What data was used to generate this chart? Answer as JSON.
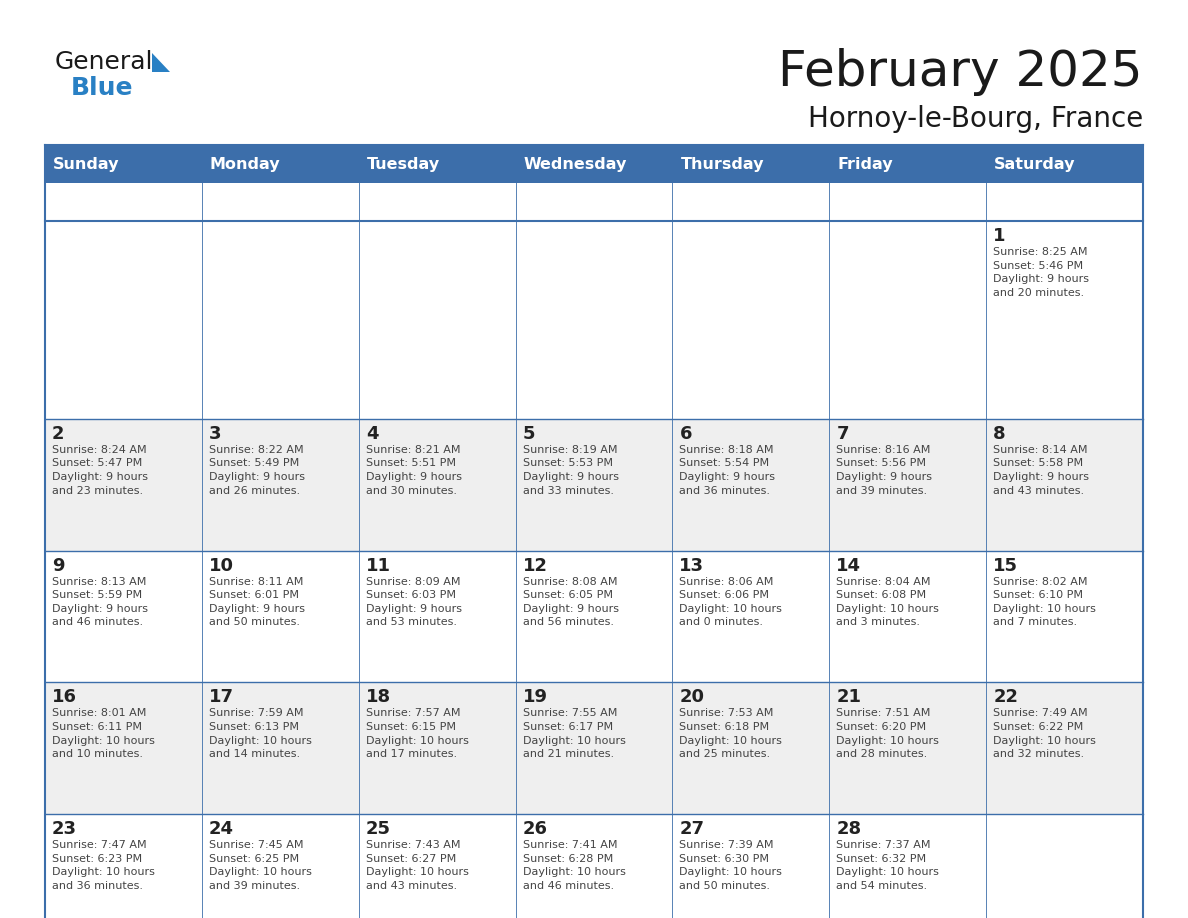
{
  "title": "February 2025",
  "subtitle": "Hornoy-le-Bourg, France",
  "days_of_week": [
    "Sunday",
    "Monday",
    "Tuesday",
    "Wednesday",
    "Thursday",
    "Friday",
    "Saturday"
  ],
  "header_bg": "#3C6EAA",
  "header_text": "#FFFFFF",
  "header_font_size": 12,
  "day_number_color": "#333333",
  "cell_bg_white": "#FFFFFF",
  "cell_bg_gray": "#EFEFEF",
  "cell_text_color": "#444444",
  "border_color": "#3C6EAA",
  "title_color": "#1a1a1a",
  "logo_general_color": "#1a1a1a",
  "logo_blue_color": "#2980C4",
  "calendar_data": [
    [
      null,
      null,
      null,
      null,
      null,
      null,
      {
        "day": 1,
        "sunrise": "8:25 AM",
        "sunset": "5:46 PM",
        "daylight": "9 hours\nand 20 minutes."
      }
    ],
    [
      {
        "day": 2,
        "sunrise": "8:24 AM",
        "sunset": "5:47 PM",
        "daylight": "9 hours\nand 23 minutes."
      },
      {
        "day": 3,
        "sunrise": "8:22 AM",
        "sunset": "5:49 PM",
        "daylight": "9 hours\nand 26 minutes."
      },
      {
        "day": 4,
        "sunrise": "8:21 AM",
        "sunset": "5:51 PM",
        "daylight": "9 hours\nand 30 minutes."
      },
      {
        "day": 5,
        "sunrise": "8:19 AM",
        "sunset": "5:53 PM",
        "daylight": "9 hours\nand 33 minutes."
      },
      {
        "day": 6,
        "sunrise": "8:18 AM",
        "sunset": "5:54 PM",
        "daylight": "9 hours\nand 36 minutes."
      },
      {
        "day": 7,
        "sunrise": "8:16 AM",
        "sunset": "5:56 PM",
        "daylight": "9 hours\nand 39 minutes."
      },
      {
        "day": 8,
        "sunrise": "8:14 AM",
        "sunset": "5:58 PM",
        "daylight": "9 hours\nand 43 minutes."
      }
    ],
    [
      {
        "day": 9,
        "sunrise": "8:13 AM",
        "sunset": "5:59 PM",
        "daylight": "9 hours\nand 46 minutes."
      },
      {
        "day": 10,
        "sunrise": "8:11 AM",
        "sunset": "6:01 PM",
        "daylight": "9 hours\nand 50 minutes."
      },
      {
        "day": 11,
        "sunrise": "8:09 AM",
        "sunset": "6:03 PM",
        "daylight": "9 hours\nand 53 minutes."
      },
      {
        "day": 12,
        "sunrise": "8:08 AM",
        "sunset": "6:05 PM",
        "daylight": "9 hours\nand 56 minutes."
      },
      {
        "day": 13,
        "sunrise": "8:06 AM",
        "sunset": "6:06 PM",
        "daylight": "10 hours\nand 0 minutes."
      },
      {
        "day": 14,
        "sunrise": "8:04 AM",
        "sunset": "6:08 PM",
        "daylight": "10 hours\nand 3 minutes."
      },
      {
        "day": 15,
        "sunrise": "8:02 AM",
        "sunset": "6:10 PM",
        "daylight": "10 hours\nand 7 minutes."
      }
    ],
    [
      {
        "day": 16,
        "sunrise": "8:01 AM",
        "sunset": "6:11 PM",
        "daylight": "10 hours\nand 10 minutes."
      },
      {
        "day": 17,
        "sunrise": "7:59 AM",
        "sunset": "6:13 PM",
        "daylight": "10 hours\nand 14 minutes."
      },
      {
        "day": 18,
        "sunrise": "7:57 AM",
        "sunset": "6:15 PM",
        "daylight": "10 hours\nand 17 minutes."
      },
      {
        "day": 19,
        "sunrise": "7:55 AM",
        "sunset": "6:17 PM",
        "daylight": "10 hours\nand 21 minutes."
      },
      {
        "day": 20,
        "sunrise": "7:53 AM",
        "sunset": "6:18 PM",
        "daylight": "10 hours\nand 25 minutes."
      },
      {
        "day": 21,
        "sunrise": "7:51 AM",
        "sunset": "6:20 PM",
        "daylight": "10 hours\nand 28 minutes."
      },
      {
        "day": 22,
        "sunrise": "7:49 AM",
        "sunset": "6:22 PM",
        "daylight": "10 hours\nand 32 minutes."
      }
    ],
    [
      {
        "day": 23,
        "sunrise": "7:47 AM",
        "sunset": "6:23 PM",
        "daylight": "10 hours\nand 36 minutes."
      },
      {
        "day": 24,
        "sunrise": "7:45 AM",
        "sunset": "6:25 PM",
        "daylight": "10 hours\nand 39 minutes."
      },
      {
        "day": 25,
        "sunrise": "7:43 AM",
        "sunset": "6:27 PM",
        "daylight": "10 hours\nand 43 minutes."
      },
      {
        "day": 26,
        "sunrise": "7:41 AM",
        "sunset": "6:28 PM",
        "daylight": "10 hours\nand 46 minutes."
      },
      {
        "day": 27,
        "sunrise": "7:39 AM",
        "sunset": "6:30 PM",
        "daylight": "10 hours\nand 50 minutes."
      },
      {
        "day": 28,
        "sunrise": "7:37 AM",
        "sunset": "6:32 PM",
        "daylight": "10 hours\nand 54 minutes."
      },
      null
    ]
  ]
}
